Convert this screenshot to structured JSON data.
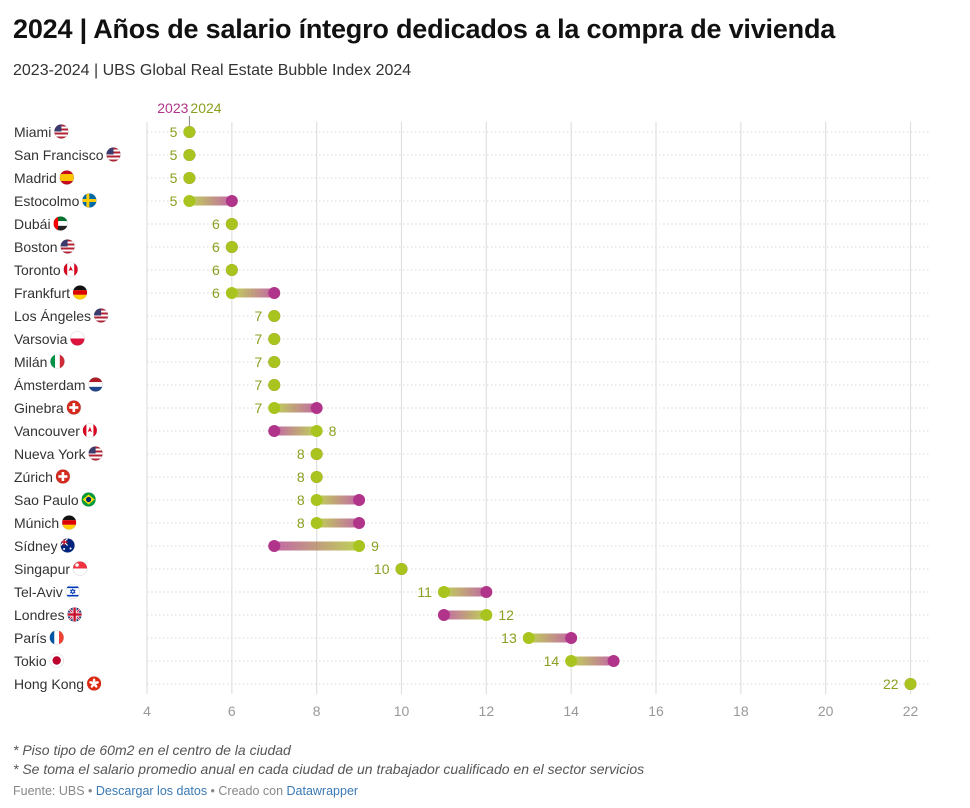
{
  "header": {
    "title": "2024 | Años de salario íntegro dedicados a la compra de vivienda",
    "subtitle": "2023-2024 | UBS Global Real Estate Bubble Index 2024"
  },
  "colors": {
    "y2023": "#b0358a",
    "y2024": "#a9c41e",
    "label2024": "#8aa020",
    "grid": "#e0e0e0",
    "axis_text": "#999999",
    "city_text": "#333333"
  },
  "chart_data": {
    "type": "dot-range",
    "series": [
      {
        "name": "2023",
        "color": "#b0358a"
      },
      {
        "name": "2024",
        "color": "#a9c41e"
      }
    ],
    "xlim": [
      4,
      22.2
    ],
    "xticks": [
      4,
      6,
      8,
      10,
      12,
      14,
      16,
      18,
      20,
      22
    ],
    "grid": true,
    "legend_position": "top-left",
    "rows": [
      {
        "city": "Miami",
        "flag": "us",
        "v2023": 5,
        "v2024": 5,
        "label": "5"
      },
      {
        "city": "San Francisco",
        "flag": "us",
        "v2023": 5,
        "v2024": 5,
        "label": "5"
      },
      {
        "city": "Madrid",
        "flag": "es",
        "v2023": 5,
        "v2024": 5,
        "label": "5"
      },
      {
        "city": "Estocolmo",
        "flag": "se",
        "v2023": 6,
        "v2024": 5,
        "label": "5"
      },
      {
        "city": "Dubái",
        "flag": "ae",
        "v2023": 6,
        "v2024": 6,
        "label": "6"
      },
      {
        "city": "Boston",
        "flag": "us",
        "v2023": 6,
        "v2024": 6,
        "label": "6"
      },
      {
        "city": "Toronto",
        "flag": "ca",
        "v2023": 6,
        "v2024": 6,
        "label": "6"
      },
      {
        "city": "Frankfurt",
        "flag": "de",
        "v2023": 7,
        "v2024": 6,
        "label": "6"
      },
      {
        "city": "Los Ángeles",
        "flag": "us",
        "v2023": 7,
        "v2024": 7,
        "label": "7"
      },
      {
        "city": "Varsovia",
        "flag": "pl",
        "v2023": 7,
        "v2024": 7,
        "label": "7"
      },
      {
        "city": "Milán",
        "flag": "it",
        "v2023": 7,
        "v2024": 7,
        "label": "7"
      },
      {
        "city": "Ámsterdam",
        "flag": "nl",
        "v2023": 7,
        "v2024": 7,
        "label": "7"
      },
      {
        "city": "Ginebra",
        "flag": "ch",
        "v2023": 8,
        "v2024": 7,
        "label": "7"
      },
      {
        "city": "Vancouver",
        "flag": "ca",
        "v2023": 7,
        "v2024": 8,
        "label": "8"
      },
      {
        "city": "Nueva York",
        "flag": "us",
        "v2023": 8,
        "v2024": 8,
        "label": "8"
      },
      {
        "city": "Zúrich",
        "flag": "ch",
        "v2023": 8,
        "v2024": 8,
        "label": "8"
      },
      {
        "city": "Sao Paulo",
        "flag": "br",
        "v2023": 9,
        "v2024": 8,
        "label": "8"
      },
      {
        "city": "Múnich",
        "flag": "de",
        "v2023": 9,
        "v2024": 8,
        "label": "8"
      },
      {
        "city": "Sídney",
        "flag": "au",
        "v2023": 7,
        "v2024": 9,
        "label": "9"
      },
      {
        "city": "Singapur",
        "flag": "sg",
        "v2023": 10,
        "v2024": 10,
        "label": "10"
      },
      {
        "city": "Tel-Aviv",
        "flag": "il",
        "v2023": 12,
        "v2024": 11,
        "label": "11"
      },
      {
        "city": "Londres",
        "flag": "gb",
        "v2023": 11,
        "v2024": 12,
        "label": "12"
      },
      {
        "city": "París",
        "flag": "fr",
        "v2023": 14,
        "v2024": 13,
        "label": "13"
      },
      {
        "city": "Tokio",
        "flag": "jp",
        "v2023": 15,
        "v2024": 14,
        "label": "14"
      },
      {
        "city": "Hong Kong",
        "flag": "hk",
        "v2023": 22,
        "v2024": 22,
        "label": "22"
      }
    ]
  },
  "notes": {
    "note1": "* Piso tipo de 60m2 en el centro de la ciudad",
    "note2": "* Se toma el salario promedio anual en cada ciudad de un trabajador cualificado en el sector servicios"
  },
  "footer": {
    "source": "Fuente: UBS",
    "sep1": " • ",
    "download": "Descargar los datos",
    "sep2": " • Creado con ",
    "tool": "Datawrapper"
  }
}
